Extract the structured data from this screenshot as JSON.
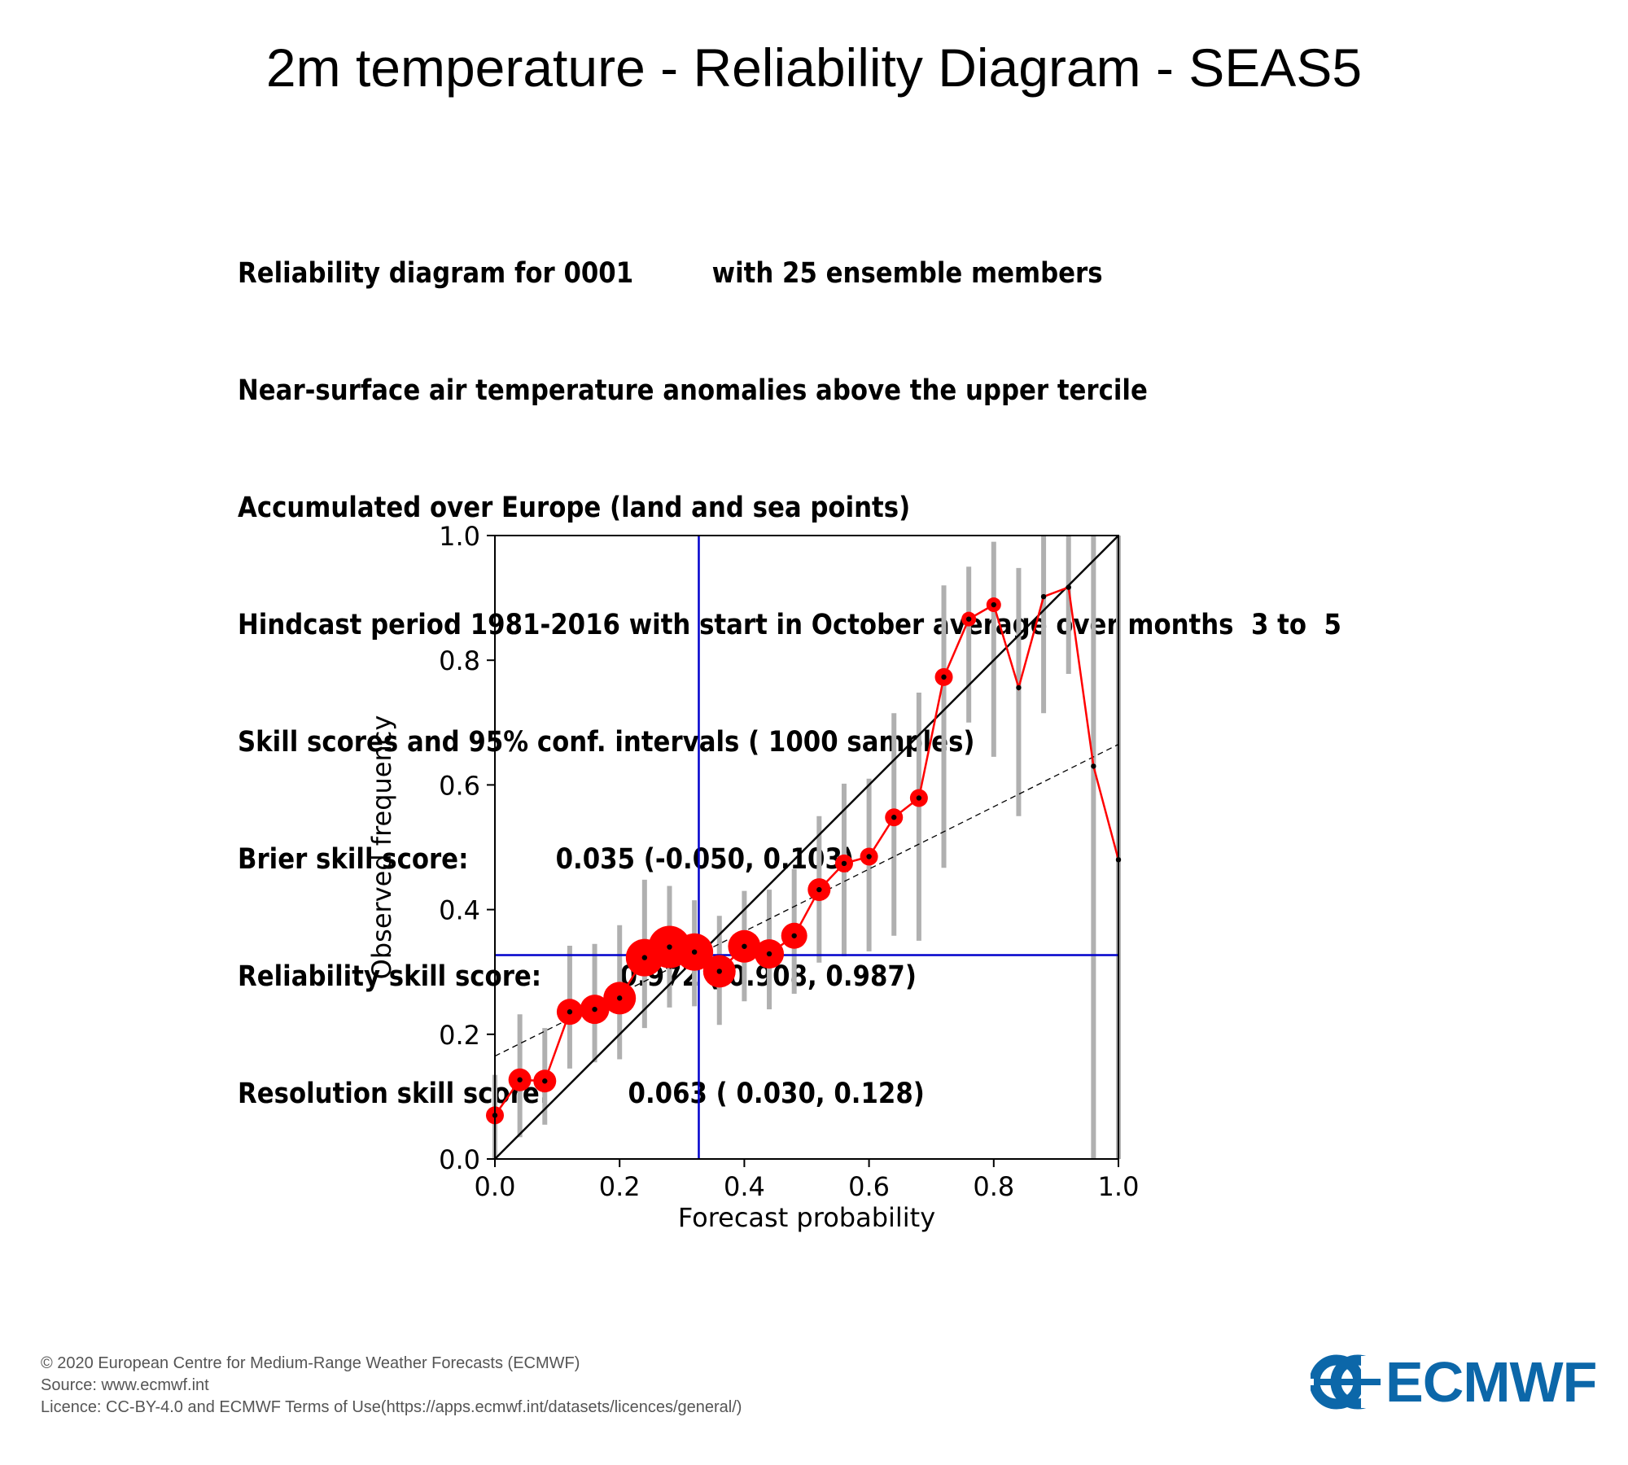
{
  "title": "2m temperature - Reliability Diagram - SEAS5",
  "info_lines": [
    "Reliability diagram for 0001         with 25 ensemble members",
    "Near-surface air temperature anomalies above the upper tercile",
    "Accumulated over Europe (land and sea points)",
    "Hindcast period 1981-2016 with start in October average over months  3 to  5",
    "Skill scores and 95% conf. intervals ( 1000 samples)",
    "Brier skill score:          0.035 (-0.050, 0.103)",
    "Reliability skill score:         0.972 ( 0.908, 0.987)",
    "Resolution skill score:         0.063 ( 0.030, 0.128)"
  ],
  "footer": {
    "copyright": "© 2020 European Centre for Medium-Range Weather Forecasts (ECMWF)",
    "source": "Source: www.ecmwf.int",
    "licence": "Licence: CC-BY-4.0 and ECMWF Terms of Use(https://apps.ecmwf.int/datasets/licences/general/)"
  },
  "logo": {
    "text": "ECMWF",
    "color": "#0c67a9"
  },
  "chart_data": {
    "type": "scatter",
    "xlabel": "Forecast probability",
    "ylabel": "Observed frequency",
    "xlim": [
      0,
      1
    ],
    "ylim": [
      0,
      1
    ],
    "xticks": [
      "0.0",
      "0.2",
      "0.4",
      "0.6",
      "0.8",
      "1.0"
    ],
    "yticks": [
      "0.0",
      "0.2",
      "0.4",
      "0.6",
      "0.8",
      "1.0"
    ],
    "grid": false,
    "colors": {
      "series": "#ff0000",
      "climatology": "#0000cc",
      "error_bars": "#b0b0b0",
      "diagonal": "#000000"
    },
    "climatology": {
      "x": 0.327,
      "y": 0.327
    },
    "diagonal": [
      [
        0,
        0
      ],
      [
        1,
        1
      ]
    ],
    "regression_line": [
      [
        0,
        0.165
      ],
      [
        1,
        0.665
      ]
    ],
    "points": [
      {
        "x": 0.0,
        "y": 0.07,
        "lo": 0.0,
        "hi": 0.135,
        "size": 2
      },
      {
        "x": 0.04,
        "y": 0.127,
        "lo": 0.035,
        "hi": 0.232,
        "size": 3
      },
      {
        "x": 0.08,
        "y": 0.125,
        "lo": 0.055,
        "hi": 0.21,
        "size": 3
      },
      {
        "x": 0.12,
        "y": 0.236,
        "lo": 0.145,
        "hi": 0.342,
        "size": 4
      },
      {
        "x": 0.16,
        "y": 0.24,
        "lo": 0.155,
        "hi": 0.345,
        "size": 5
      },
      {
        "x": 0.2,
        "y": 0.258,
        "lo": 0.16,
        "hi": 0.375,
        "size": 6
      },
      {
        "x": 0.24,
        "y": 0.323,
        "lo": 0.21,
        "hi": 0.448,
        "size": 7
      },
      {
        "x": 0.28,
        "y": 0.34,
        "lo": 0.243,
        "hi": 0.438,
        "size": 8
      },
      {
        "x": 0.32,
        "y": 0.332,
        "lo": 0.245,
        "hi": 0.415,
        "size": 7
      },
      {
        "x": 0.36,
        "y": 0.301,
        "lo": 0.215,
        "hi": 0.39,
        "size": 6
      },
      {
        "x": 0.4,
        "y": 0.341,
        "lo": 0.253,
        "hi": 0.43,
        "size": 6
      },
      {
        "x": 0.44,
        "y": 0.329,
        "lo": 0.24,
        "hi": 0.432,
        "size": 5
      },
      {
        "x": 0.48,
        "y": 0.358,
        "lo": 0.265,
        "hi": 0.465,
        "size": 4
      },
      {
        "x": 0.52,
        "y": 0.432,
        "lo": 0.315,
        "hi": 0.55,
        "size": 3
      },
      {
        "x": 0.56,
        "y": 0.474,
        "lo": 0.325,
        "hi": 0.602,
        "size": 2
      },
      {
        "x": 0.6,
        "y": 0.485,
        "lo": 0.333,
        "hi": 0.61,
        "size": 2
      },
      {
        "x": 0.64,
        "y": 0.548,
        "lo": 0.358,
        "hi": 0.715,
        "size": 2
      },
      {
        "x": 0.68,
        "y": 0.579,
        "lo": 0.35,
        "hi": 0.748,
        "size": 2
      },
      {
        "x": 0.72,
        "y": 0.773,
        "lo": 0.467,
        "hi": 0.92,
        "size": 2
      },
      {
        "x": 0.76,
        "y": 0.866,
        "lo": 0.7,
        "hi": 0.95,
        "size": 1
      },
      {
        "x": 0.8,
        "y": 0.889,
        "lo": 0.645,
        "hi": 0.99,
        "size": 1
      },
      {
        "x": 0.84,
        "y": 0.756,
        "lo": 0.55,
        "hi": 0.948,
        "size": 0
      },
      {
        "x": 0.88,
        "y": 0.902,
        "lo": 0.715,
        "hi": 1.0,
        "size": 0
      },
      {
        "x": 0.92,
        "y": 0.917,
        "lo": 0.778,
        "hi": 1.0,
        "size": 0
      },
      {
        "x": 0.96,
        "y": 0.63,
        "lo": 0.0,
        "hi": 1.0,
        "size": 0
      },
      {
        "x": 1.0,
        "y": 0.48,
        "lo": 0.0,
        "hi": 1.0,
        "size": 0
      }
    ]
  }
}
